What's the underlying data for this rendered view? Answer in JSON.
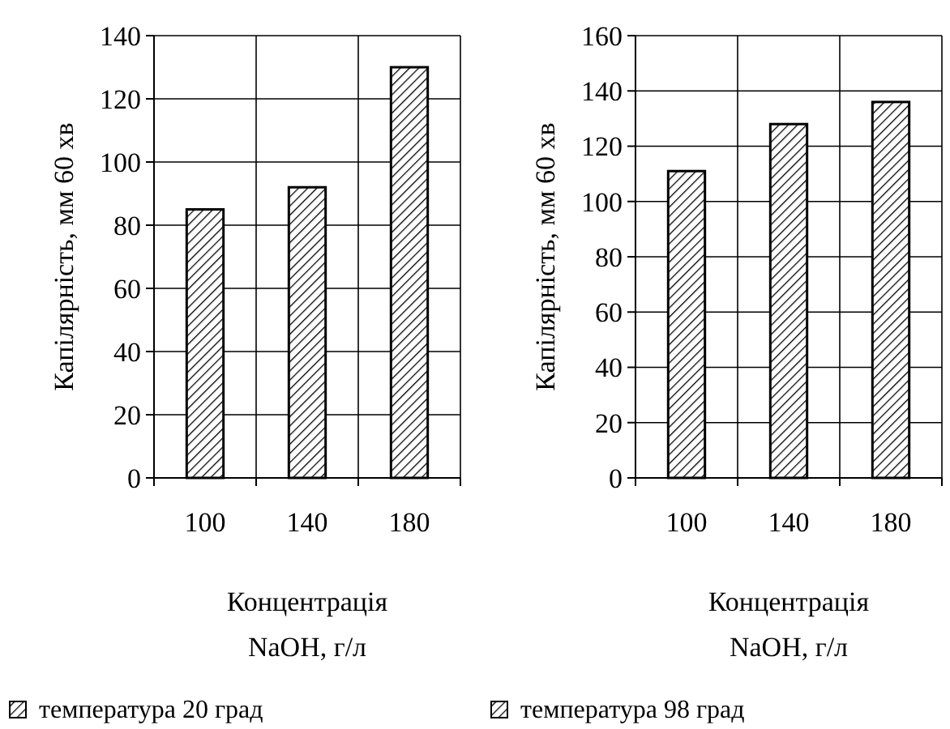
{
  "chart_data": [
    {
      "type": "bar",
      "xlabel": "Концентрація\nNaOH,  г/л",
      "ylabel": "Капілярність, мм 60 хв",
      "categories": [
        "100",
        "140",
        "180"
      ],
      "series": [
        {
          "name": "температура 20 град",
          "color": "#000000",
          "values": [
            85,
            92,
            130
          ]
        }
      ],
      "ylim": [
        0,
        140
      ],
      "yticks": [
        0,
        20,
        40,
        60,
        80,
        100,
        120,
        140
      ],
      "grid": true,
      "legend": "bottom"
    },
    {
      "type": "bar",
      "xlabel": "Концентрація\nNaOH,  г/л",
      "ylabel": "Капілярність, мм 60 хв",
      "categories": [
        "100",
        "140",
        "180"
      ],
      "series": [
        {
          "name": "температура 98 град",
          "color": "#000000",
          "values": [
            111,
            128,
            136
          ]
        }
      ],
      "ylim": [
        0,
        160
      ],
      "yticks": [
        0,
        20,
        40,
        60,
        80,
        100,
        120,
        140,
        160
      ],
      "grid": true,
      "legend": "bottom"
    }
  ]
}
